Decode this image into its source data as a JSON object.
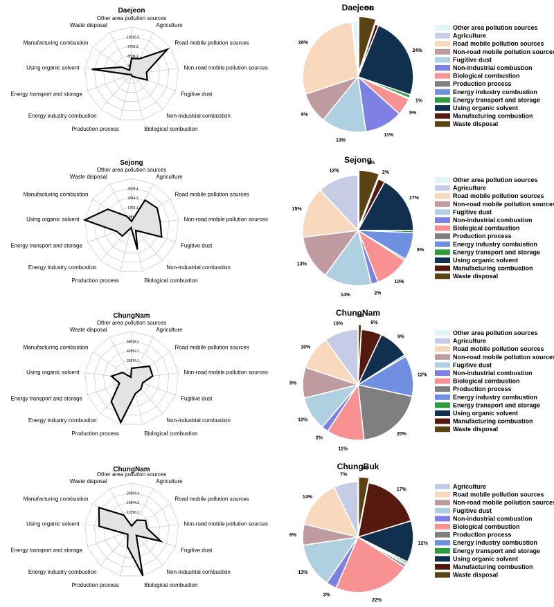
{
  "colors": {
    "Other area pollution sources": "#dff4f7",
    "Agriculture": "#c6cbe6",
    "Road mobile pollution sources": "#f9d9bd",
    "Non-road mobile pollution sources": "#bf9a9e",
    "Fugitive dust": "#aed0e0",
    "Non-industrial combustion": "#7f80e4",
    "Biological combustion": "#f79192",
    "Production process": "#7f7f7f",
    "Energy industry combustion": "#6f8fe0",
    "Energy transport and storage": "#2f9a3c",
    "Using organic solvent": "#11304f",
    "Manufacturing combustion": "#55190e",
    "Waste disposal": "#5b4213",
    "radar_fill": "#e3e3e3",
    "radar_line": "#000000",
    "grid": "#c8c8c8"
  },
  "chart_data": [
    {
      "type": "radar",
      "title": "Daejeon",
      "axes": [
        "Other area pollution sources",
        "Agriculture",
        "Road mobile pollution sources",
        "Non-road mobile pollution sources",
        "Fugitive dust",
        "Non-industrial combustion",
        "Biological combustion",
        "Production process",
        "Energy industry combustion",
        "Energy transport and storage",
        "Using organic solvent",
        "Manufacturing combustion",
        "Waste disposal"
      ],
      "tick_labels": [
        "13016.3",
        "9763.2",
        "6508.1",
        "3254.1"
      ],
      "rmax": 16270,
      "values": [
        5400,
        6000,
        15000,
        5200,
        5800,
        1300,
        800,
        200,
        200,
        600,
        13800,
        4200,
        1500
      ]
    },
    {
      "type": "pie",
      "title": "Daejeon",
      "legend": [
        "Other area pollution sources",
        "Agriculture",
        "Road mobile pollution sources",
        "Non-road mobile pollution sources",
        "Fugitive dust",
        "Non-industrial combustion",
        "Biological combustion",
        "Production process",
        "Energy industry combustion",
        "Energy transport and storage",
        "Using organic solvent",
        "Manufacturing combustion",
        "Waste disposal"
      ],
      "slices": [
        {
          "name": "Waste disposal",
          "value": 5,
          "label": "5%"
        },
        {
          "name": "Manufacturing combustion",
          "value": 1,
          "label": ""
        },
        {
          "name": "Using organic solvent",
          "value": 24,
          "label": "24%"
        },
        {
          "name": "Energy transport and storage",
          "value": 1,
          "label": "1%"
        },
        {
          "name": "Energy industry combustion",
          "value": 0.3,
          "label": ""
        },
        {
          "name": "Biological combustion",
          "value": 5,
          "label": "5%"
        },
        {
          "name": "Non-industrial combustion",
          "value": 11,
          "label": "11%"
        },
        {
          "name": "Fugitive dust",
          "value": 13,
          "label": "13%"
        },
        {
          "name": "Non-road mobile pollution sources",
          "value": 9,
          "label": "9%"
        },
        {
          "name": "Road mobile pollution sources",
          "value": 28,
          "label": "28%"
        },
        {
          "name": "Agriculture",
          "value": 0.3,
          "label": ""
        },
        {
          "name": "Other area pollution sources",
          "value": 1.5,
          "label": ""
        }
      ]
    },
    {
      "type": "radar",
      "title": "Sejong",
      "axes": [
        "Other area pollution sources",
        "Agriculture",
        "Road mobile pollution sources",
        "Non-road mobile pollution sources",
        "Fugitive dust",
        "Non-industrial combustion",
        "Biological combustion",
        "Production process",
        "Energy industry combustion",
        "Energy transport and storage",
        "Using organic solvent",
        "Manufacturing combustion",
        "Waste disposal"
      ],
      "tick_labels": [
        "3509.4",
        "2644.3",
        "1762.1",
        "881.6"
      ],
      "rmax": 4400,
      "values": [
        400,
        2700,
        2900,
        2700,
        3000,
        600,
        2300,
        200,
        1300,
        1500,
        4400,
        2700,
        1000
      ]
    },
    {
      "type": "pie",
      "title": "Sejong",
      "legend": [
        "Other area pollution sources",
        "Agriculture",
        "Road mobile pollution sources",
        "Non-road mobile pollution sources",
        "Fugitive dust",
        "Non-industrial combustion",
        "Biological combustion",
        "Production process",
        "Energy industry combustion",
        "Energy transport and storage",
        "Using organic solvent",
        "Manufacturing combustion",
        "Waste disposal"
      ],
      "slices": [
        {
          "name": "Waste disposal",
          "value": 6,
          "label": "6%"
        },
        {
          "name": "Manufacturing combustion",
          "value": 2,
          "label": "2%"
        },
        {
          "name": "Using organic solvent",
          "value": 17,
          "label": "17%"
        },
        {
          "name": "Energy transport and storage",
          "value": 0.7,
          "label": ""
        },
        {
          "name": "Energy industry combustion",
          "value": 8,
          "label": "8%"
        },
        {
          "name": "Production process",
          "value": 0.5,
          "label": ""
        },
        {
          "name": "Biological combustion",
          "value": 10,
          "label": "10%"
        },
        {
          "name": "Non-industrial combustion",
          "value": 2,
          "label": "2%"
        },
        {
          "name": "Fugitive dust",
          "value": 14,
          "label": "14%"
        },
        {
          "name": "Non-road mobile pollution sources",
          "value": 13,
          "label": "13%"
        },
        {
          "name": "Road mobile pollution sources",
          "value": 15,
          "label": "15%"
        },
        {
          "name": "Agriculture",
          "value": 12,
          "label": "12%"
        }
      ]
    },
    {
      "type": "radar",
      "title": "ChungNam",
      "axes": [
        "Other area pollution sources",
        "Agriculture",
        "Road mobile pollution sources",
        "Non-road mobile pollution sources",
        "Fugitive dust",
        "Non-industrial combustion",
        "Biological combustion",
        "Production process",
        "Energy industry combustion",
        "Energy transport and storage",
        "Using organic solvent",
        "Manufacturing combustion",
        "Waste disposal"
      ],
      "tick_labels": [
        "68028.2",
        "45352.1",
        "22676.1"
      ],
      "rmax": 90700,
      "values": [
        20000,
        24000,
        42000,
        41000,
        23000,
        27000,
        30000,
        87000,
        59000,
        25000,
        39000,
        21000,
        3000
      ]
    },
    {
      "type": "pie",
      "title": "ChungNam",
      "legend": [
        "Other area pollution sources",
        "Agriculture",
        "Road mobile pollution sources",
        "Non-road mobile pollution sources",
        "Fugitive dust",
        "Non-industrial combustion",
        "Biological combustion",
        "Production process",
        "Energy industry combustion",
        "Energy transport and storage",
        "Using organic solvent",
        "Manufacturing combustion",
        "Waste disposal"
      ],
      "slices": [
        {
          "name": "Waste disposal",
          "value": 1,
          "label": "1%"
        },
        {
          "name": "Manufacturing combustion",
          "value": 6,
          "label": "6%"
        },
        {
          "name": "Using organic solvent",
          "value": 9,
          "label": "9%"
        },
        {
          "name": "Energy transport and storage",
          "value": 0.5,
          "label": ""
        },
        {
          "name": "Energy industry combustion",
          "value": 12,
          "label": "12%"
        },
        {
          "name": "Production process",
          "value": 20,
          "label": "20%"
        },
        {
          "name": "Biological combustion",
          "value": 11,
          "label": "11%"
        },
        {
          "name": "Non-industrial combustion",
          "value": 2,
          "label": "2%"
        },
        {
          "name": "Fugitive dust",
          "value": 10,
          "label": "10%"
        },
        {
          "name": "Non-road mobile pollution sources",
          "value": 9,
          "label": "9%"
        },
        {
          "name": "Road mobile pollution sources",
          "value": 10,
          "label": "10%"
        },
        {
          "name": "Agriculture",
          "value": 10,
          "label": "10%"
        }
      ]
    },
    {
      "type": "radar",
      "title": "ChungNam",
      "axes": [
        "Other area pollution sources",
        "Agriculture",
        "Road mobile pollution sources",
        "Non-road mobile pollution sources",
        "Fugitive dust",
        "Non-industrial combustion",
        "Biological combustion",
        "Production process",
        "Energy industry combustion",
        "Energy transport and storage",
        "Using organic solvent",
        "Manufacturing combustion",
        "Waste disposal"
      ],
      "tick_labels": [
        "26594.4",
        "19944.3",
        "13296.1"
      ],
      "rmax": 33200,
      "values": [
        3000,
        8000,
        12000,
        11000,
        22000,
        5000,
        33000,
        12000,
        4000,
        6000,
        23000,
        28000,
        12000
      ]
    },
    {
      "type": "pie",
      "title": "ChungBuk",
      "legend": [
        "Agriculture",
        "Road mobile pollution sources",
        "Non-road mobile pollution sources",
        "Fugitive dust",
        "Non-industrial combustion",
        "Biological combustion",
        "Production process",
        "Energy industry combustion",
        "Energy transport and storage",
        "Using organic solvent",
        "Manufacturing combustion",
        "Waste disposal"
      ],
      "slices": [
        {
          "name": "Waste disposal",
          "value": 3,
          "label": "3%"
        },
        {
          "name": "Manufacturing combustion",
          "value": 17,
          "label": "17%"
        },
        {
          "name": "Using organic solvent",
          "value": 12,
          "label": "12%"
        },
        {
          "name": "Energy transport and storage",
          "value": 0.5,
          "label": ""
        },
        {
          "name": "Energy industry combustion",
          "value": 0.5,
          "label": ""
        },
        {
          "name": "Production process",
          "value": 0.8,
          "label": ""
        },
        {
          "name": "Biological combustion",
          "value": 22,
          "label": "22%"
        },
        {
          "name": "Non-industrial combustion",
          "value": 3,
          "label": "3%"
        },
        {
          "name": "Fugitive dust",
          "value": 13,
          "label": "13%"
        },
        {
          "name": "Non-road mobile pollution sources",
          "value": 6,
          "label": "6%"
        },
        {
          "name": "Road mobile pollution sources",
          "value": 14,
          "label": "14%"
        },
        {
          "name": "Agriculture",
          "value": 7,
          "label": "7%"
        }
      ]
    }
  ]
}
